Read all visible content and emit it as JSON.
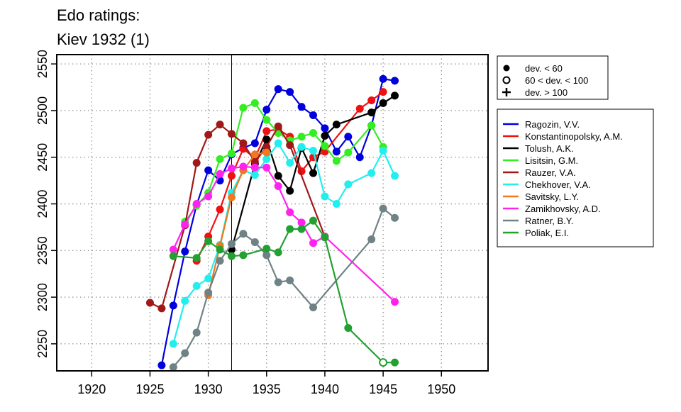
{
  "chart_data": {
    "type": "line",
    "title": [
      "Edo ratings:",
      "Kiev 1932 (1)"
    ],
    "xlabel": "",
    "ylabel": "",
    "xlim": [
      1917,
      1954
    ],
    "ylim": [
      2221,
      2560
    ],
    "x_ticks": [
      1920,
      1925,
      1930,
      1935,
      1940,
      1945,
      1950
    ],
    "y_ticks": [
      2250,
      2300,
      2350,
      2400,
      2450,
      2500,
      2550
    ],
    "grid": true,
    "reference_line_x": 1932,
    "legend_position": "right",
    "marker_legend": [
      {
        "symbol": "filled-circle",
        "label": "dev. < 60"
      },
      {
        "symbol": "open-circle",
        "label": "60 < dev. < 100"
      },
      {
        "symbol": "plus",
        "label": "dev. > 100"
      }
    ],
    "series": [
      {
        "name": "Ragozin, V.V.",
        "color": "#0000dd",
        "points": [
          [
            1926,
            2227
          ],
          [
            1927,
            2291
          ],
          [
            1928,
            2349
          ],
          [
            1929,
            2399
          ],
          [
            1930,
            2436
          ],
          [
            1931,
            2425
          ],
          [
            1932,
            2453
          ],
          [
            1933,
            2460
          ],
          [
            1934,
            2465
          ],
          [
            1935,
            2501
          ],
          [
            1936,
            2523
          ],
          [
            1937,
            2520
          ],
          [
            1938,
            2504
          ],
          [
            1939,
            2495
          ],
          [
            1940,
            2481
          ],
          [
            1941,
            2456
          ],
          [
            1942,
            2472
          ],
          [
            1943,
            2450
          ],
          [
            1944,
            2484
          ],
          [
            1945,
            2534
          ],
          [
            1946,
            2532
          ]
        ]
      },
      {
        "name": "Konstantinopolsky, A.M.",
        "color": "#ee1111",
        "points": [
          [
            1929,
            2339
          ],
          [
            1930,
            2365
          ],
          [
            1931,
            2394
          ],
          [
            1932,
            2430
          ],
          [
            1933,
            2459
          ],
          [
            1934,
            2449
          ],
          [
            1935,
            2478
          ],
          [
            1936,
            2480
          ],
          [
            1937,
            2472
          ],
          [
            1938,
            2435
          ],
          [
            1939,
            2450
          ],
          [
            1940,
            2456
          ],
          [
            1943,
            2502
          ],
          [
            1944,
            2511
          ],
          [
            1945,
            2520
          ]
        ]
      },
      {
        "name": "Tolush, A.K.",
        "color": "#000000",
        "points": [
          [
            1932,
            2351
          ],
          [
            1934,
            2443
          ],
          [
            1935,
            2469
          ],
          [
            1936,
            2430
          ],
          [
            1937,
            2414
          ],
          [
            1938,
            2460
          ],
          [
            1939,
            2433
          ],
          [
            1940,
            2473
          ],
          [
            1941,
            2485
          ],
          [
            1944,
            2498
          ],
          [
            1945,
            2508
          ],
          [
            1946,
            2516
          ]
        ]
      },
      {
        "name": "Lisitsin, G.M.",
        "color": "#33ee22",
        "points": [
          [
            1928,
            2381
          ],
          [
            1929,
            2398
          ],
          [
            1930,
            2412
          ],
          [
            1931,
            2448
          ],
          [
            1932,
            2454
          ],
          [
            1933,
            2503
          ],
          [
            1934,
            2508
          ],
          [
            1935,
            2490
          ],
          [
            1936,
            2476
          ],
          [
            1937,
            2468
          ],
          [
            1938,
            2472
          ],
          [
            1939,
            2476
          ],
          [
            1940,
            2462
          ],
          [
            1941,
            2446
          ],
          [
            1942,
            2455
          ],
          [
            1944,
            2484
          ],
          [
            1945,
            2461
          ]
        ]
      },
      {
        "name": "Rauzer, V.A.",
        "color": "#a01818",
        "points": [
          [
            1925,
            2294
          ],
          [
            1926,
            2288
          ],
          [
            1928,
            2377
          ],
          [
            1929,
            2444
          ],
          [
            1930,
            2474
          ],
          [
            1931,
            2485
          ],
          [
            1932,
            2475
          ],
          [
            1933,
            2465
          ],
          [
            1934,
            2445
          ],
          [
            1935,
            2461
          ],
          [
            1936,
            2483
          ],
          [
            1937,
            2463
          ],
          [
            1940,
            2365
          ]
        ]
      },
      {
        "name": "Chekhover, V.A.",
        "color": "#22eeee",
        "points": [
          [
            1927,
            2250
          ],
          [
            1928,
            2296
          ],
          [
            1929,
            2312
          ],
          [
            1930,
            2320
          ],
          [
            1931,
            2356
          ],
          [
            1932,
            2412
          ],
          [
            1933,
            2436
          ],
          [
            1934,
            2431
          ],
          [
            1935,
            2448
          ],
          [
            1936,
            2465
          ],
          [
            1937,
            2444
          ],
          [
            1938,
            2461
          ],
          [
            1939,
            2457
          ],
          [
            1940,
            2408
          ],
          [
            1941,
            2400
          ],
          [
            1942,
            2421
          ],
          [
            1944,
            2433
          ],
          [
            1945,
            2457
          ],
          [
            1946,
            2430
          ]
        ]
      },
      {
        "name": "Savitsky, L.Y.",
        "color": "#f07820",
        "points": [
          [
            1930,
            2302
          ],
          [
            1931,
            2355
          ],
          [
            1932,
            2407
          ],
          [
            1933,
            2436
          ],
          [
            1934,
            2453
          ],
          [
            1935,
            2455
          ]
        ]
      },
      {
        "name": "Zamikhovsky, A.D.",
        "color": "#ff22ee",
        "points": [
          [
            1927,
            2351
          ],
          [
            1928,
            2378
          ],
          [
            1929,
            2400
          ],
          [
            1930,
            2408
          ],
          [
            1931,
            2432
          ],
          [
            1932,
            2438
          ],
          [
            1933,
            2440
          ],
          [
            1934,
            2439
          ],
          [
            1935,
            2439
          ],
          [
            1936,
            2419
          ],
          [
            1937,
            2391
          ],
          [
            1938,
            2380
          ],
          [
            1939,
            2358
          ],
          [
            1940,
            2365
          ],
          [
            1946,
            2295
          ]
        ]
      },
      {
        "name": "Ratner, B.Y.",
        "color": "#6f8285",
        "points": [
          [
            1927,
            2225
          ],
          [
            1928,
            2240
          ],
          [
            1929,
            2262
          ],
          [
            1930,
            2305
          ],
          [
            1931,
            2339
          ],
          [
            1932,
            2357
          ],
          [
            1933,
            2368
          ],
          [
            1934,
            2359
          ],
          [
            1935,
            2345
          ],
          [
            1936,
            2316
          ],
          [
            1937,
            2318
          ],
          [
            1939,
            2289
          ],
          [
            1944,
            2362
          ],
          [
            1945,
            2395
          ],
          [
            1946,
            2385
          ]
        ]
      },
      {
        "name": "Poliak, E.I.",
        "color": "#22a030",
        "points": [
          [
            1927,
            2344
          ],
          [
            1929,
            2342
          ],
          [
            1930,
            2360
          ],
          [
            1931,
            2351
          ],
          [
            1932,
            2344
          ],
          [
            1933,
            2345
          ],
          [
            1935,
            2352
          ],
          [
            1936,
            2348
          ],
          [
            1937,
            2373
          ],
          [
            1938,
            2373
          ],
          [
            1939,
            2382
          ],
          [
            1940,
            2364
          ],
          [
            1942,
            2267
          ],
          [
            1945,
            2230,
            "open"
          ],
          [
            1946,
            2230
          ]
        ]
      }
    ]
  }
}
